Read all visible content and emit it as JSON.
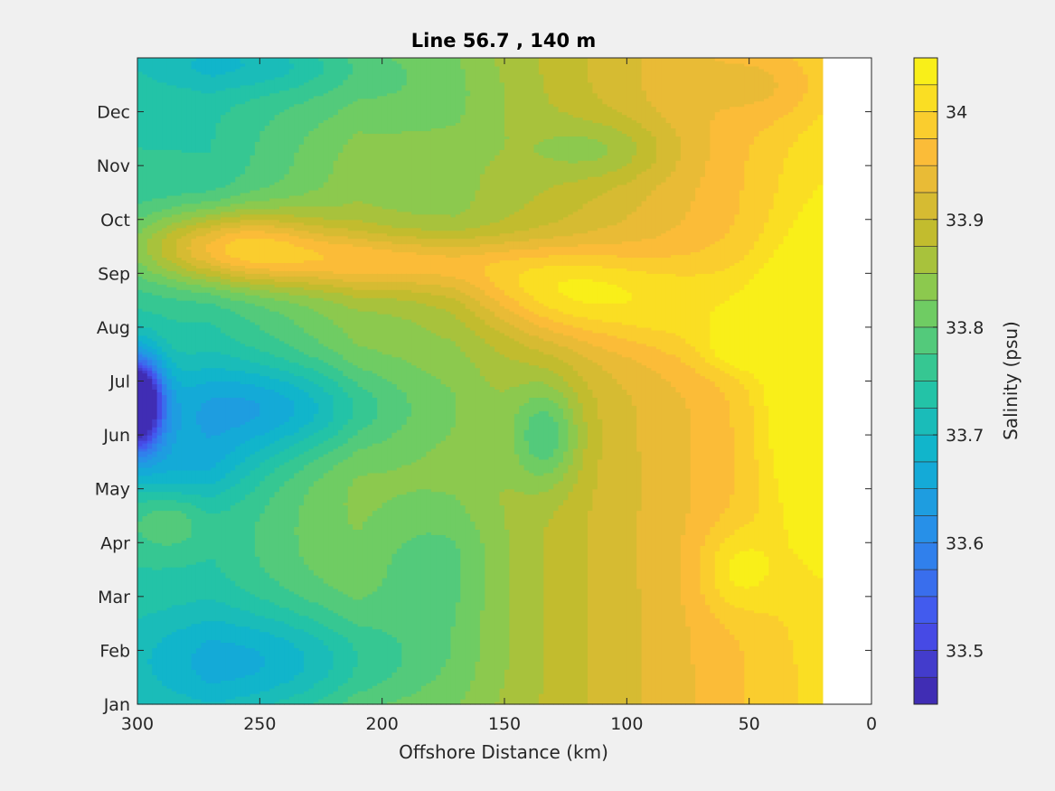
{
  "chart_data": {
    "type": "heatmap",
    "title": "Line 56.7 , 140 m",
    "xlabel": "Offshore Distance (km)",
    "ylabel": "",
    "xlim": [
      300,
      0
    ],
    "x_reversed": true,
    "x_ticks": [
      "300",
      "250",
      "200",
      "150",
      "100",
      "50",
      "0"
    ],
    "x_tick_values": [
      300,
      250,
      200,
      150,
      100,
      50,
      0
    ],
    "y_ticks": [
      "Jan",
      "Feb",
      "Mar",
      "Apr",
      "May",
      "Jun",
      "Jul",
      "Aug",
      "Sep",
      "Oct",
      "Nov",
      "Dec"
    ],
    "ylim": [
      1,
      13
    ],
    "grid": false,
    "colorbar": {
      "label": "Salinity (psu)",
      "range": [
        33.45,
        34.05
      ],
      "level_step": 0.025,
      "tick_labels": [
        "33.5",
        "33.6",
        "33.7",
        "33.8",
        "33.9",
        "34"
      ],
      "tick_values": [
        33.5,
        33.6,
        33.7,
        33.8,
        33.9,
        34.0
      ],
      "colormap": "parula"
    },
    "no_data_region": {
      "x_from": 20,
      "x_to": 0
    },
    "features": [
      {
        "x": 300,
        "month": 6.6,
        "value": 33.45,
        "kind": "minimum"
      },
      {
        "x": 255,
        "month": 6.5,
        "value": 33.64,
        "kind": "minimum"
      },
      {
        "x": 240,
        "month": 1.8,
        "value": 33.66,
        "kind": "minimum"
      },
      {
        "x": 133,
        "month": 6.0,
        "value": 33.74,
        "kind": "minimum"
      },
      {
        "x": 262,
        "month": 9.55,
        "value": 34.04,
        "kind": "maximum"
      },
      {
        "x": 130,
        "month": 8.7,
        "value": 33.98,
        "kind": "maximum"
      },
      {
        "x": 25,
        "month": 7.0,
        "value": 34.04,
        "kind": "maximum"
      },
      {
        "x": 55,
        "month": 7.6,
        "value": 34.02,
        "kind": "maximum"
      },
      {
        "x": 55,
        "month": 3.5,
        "value": 33.99,
        "kind": "maximum"
      },
      {
        "x": 288,
        "month": 4.45,
        "value": 33.93,
        "kind": "maximum"
      },
      {
        "x": 110,
        "month": 11.4,
        "value": 33.8,
        "kind": "minimum"
      },
      {
        "x": 245,
        "month": 12.8,
        "value": 33.72,
        "kind": "minimum"
      }
    ]
  }
}
